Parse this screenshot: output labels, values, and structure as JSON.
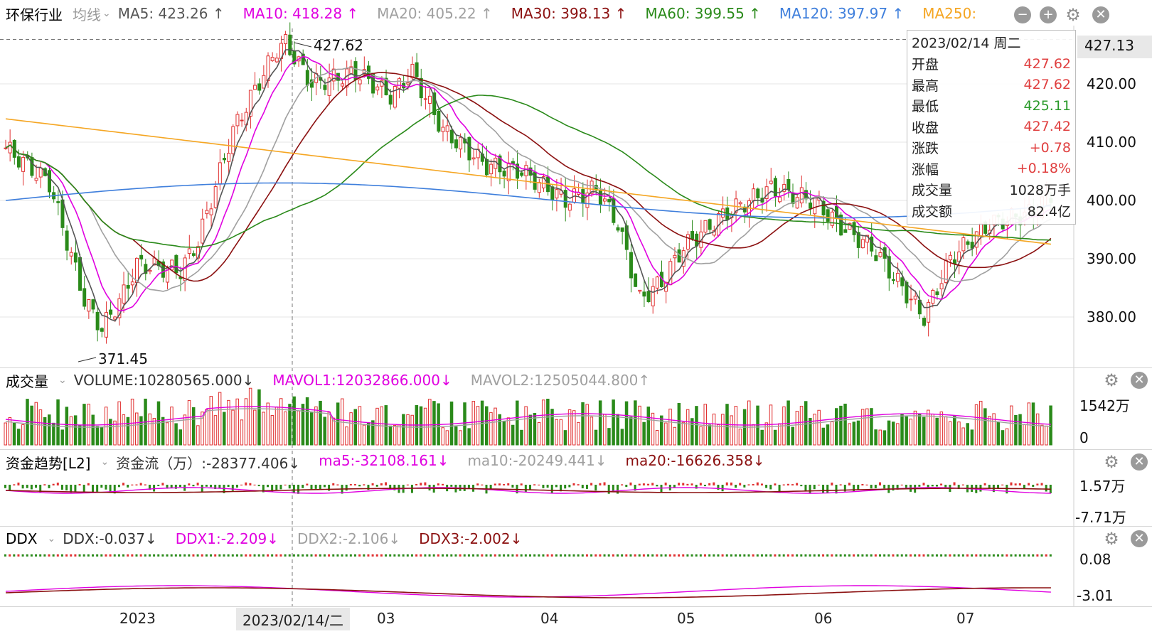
{
  "main": {
    "title": "环保行业",
    "line_type": "均线",
    "ma": [
      {
        "label": "MA5: 423.26 ↑",
        "color": "#555555"
      },
      {
        "label": "MA10: 418.28 ↑",
        "color": "#e000e0"
      },
      {
        "label": "MA20: 405.22 ↑",
        "color": "#a0a0a0"
      },
      {
        "label": "MA30: 398.13 ↑",
        "color": "#8b1010"
      },
      {
        "label": "MA60: 399.55 ↑",
        "color": "#2a8a1a"
      },
      {
        "label": "MA120: 397.97 ↑",
        "color": "#3f7fdc"
      },
      {
        "label": "MA250:",
        "color": "#f5a623"
      }
    ],
    "y_ticks": [
      "420.00",
      "410.00",
      "400.00",
      "390.00",
      "380.00"
    ],
    "current_price": "427.13",
    "high_marker": "427.62",
    "low_marker": "371.45"
  },
  "tooltip": {
    "date": "2023/02/14 周二",
    "rows": [
      {
        "k": "开盘",
        "v": "427.62",
        "color": "#e04040"
      },
      {
        "k": "最高",
        "v": "427.62",
        "color": "#e04040"
      },
      {
        "k": "最低",
        "v": "425.11",
        "color": "#2a9a2a"
      },
      {
        "k": "收盘",
        "v": "427.42",
        "color": "#e04040"
      },
      {
        "k": "涨跌",
        "v": "+0.78",
        "color": "#e04040"
      },
      {
        "k": "涨幅",
        "v": "+0.18%",
        "color": "#e04040"
      },
      {
        "k": "成交量",
        "v": "1028万手",
        "color": "#222222"
      },
      {
        "k": "成交额",
        "v": "82.4亿",
        "color": "#222222"
      }
    ]
  },
  "volume": {
    "title": "成交量",
    "items": [
      {
        "label": "VOLUME:10280565.000↓",
        "color": "#333333"
      },
      {
        "label": "MAVOL1:12032866.000↓",
        "color": "#e000e0"
      },
      {
        "label": "MAVOL2:12505044.800↑",
        "color": "#a0a0a0"
      }
    ],
    "y_top": "1542万",
    "y_bottom": "0"
  },
  "fund": {
    "title": "资金趋势[L2]",
    "items": [
      {
        "label": "资金流（万）:-28377.406↓",
        "color": "#333333"
      },
      {
        "label": "ma5:-32108.161↓",
        "color": "#e000e0"
      },
      {
        "label": "ma10:-20249.441↓",
        "color": "#a0a0a0"
      },
      {
        "label": "ma20:-16626.358↓",
        "color": "#8b1010"
      }
    ],
    "y_top": "1.57万",
    "y_bottom": "-7.71万"
  },
  "ddx": {
    "title": "DDX",
    "items": [
      {
        "label": "DDX:-0.037↓",
        "color": "#333333"
      },
      {
        "label": "DDX1:-2.209↓",
        "color": "#e000e0"
      },
      {
        "label": "DDX2:-2.106↓",
        "color": "#a0a0a0"
      },
      {
        "label": "DDX3:-2.002↓",
        "color": "#8b1010"
      }
    ],
    "y_top": "0.08",
    "y_bottom": "-3.01"
  },
  "x_axis": {
    "labels": [
      "2023",
      "03",
      "04",
      "05",
      "06",
      "07"
    ],
    "cursor_date": "2023/02/14/二"
  },
  "colors": {
    "up": "#e03030",
    "down": "#2a8a1a"
  }
}
